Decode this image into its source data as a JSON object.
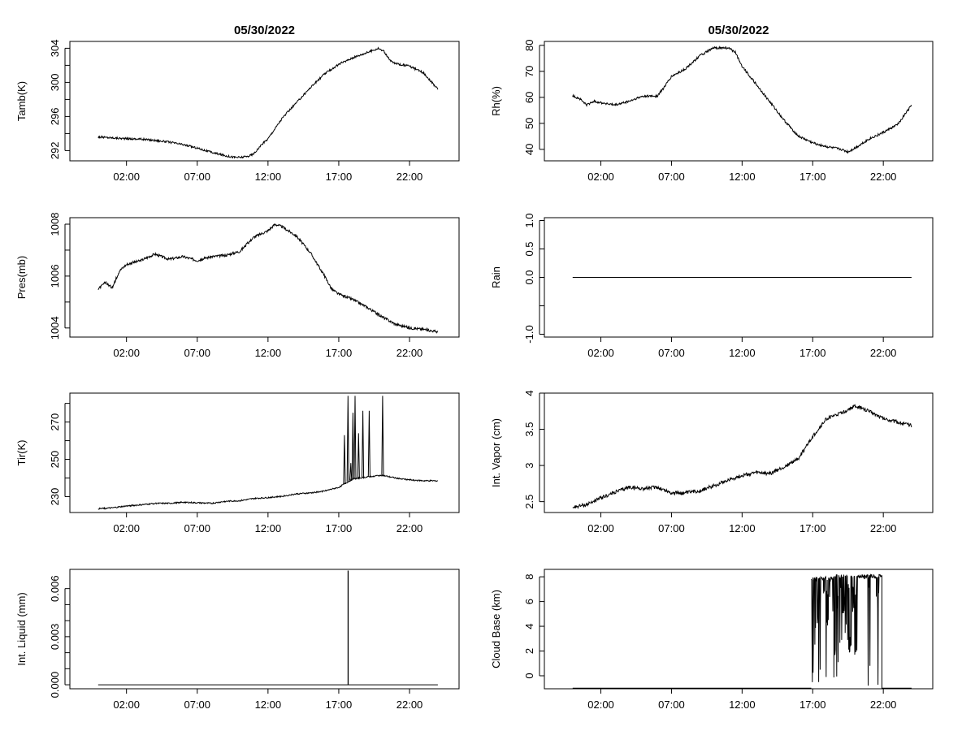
{
  "chart_data": [
    {
      "type": "line",
      "id": "tamb",
      "title": "05/30/2022",
      "ylabel": "Tamb(K)",
      "xlim": [
        -2,
        25.5
      ],
      "ylim": [
        290.8,
        304.8
      ],
      "yticks": [
        292,
        296,
        300,
        304
      ],
      "yminor": [
        290,
        294,
        298,
        302
      ],
      "xticks": [
        2,
        7,
        12,
        17,
        22
      ],
      "xtick_labels": [
        "02:00",
        "07:00",
        "12:00",
        "17:00",
        "22:00"
      ],
      "noise": 0.12,
      "points": [
        [
          0,
          293.6
        ],
        [
          1,
          293.5
        ],
        [
          2,
          293.4
        ],
        [
          3,
          293.35
        ],
        [
          4,
          293.2
        ],
        [
          5,
          293.0
        ],
        [
          6,
          292.7
        ],
        [
          7,
          292.3
        ],
        [
          8,
          291.8
        ],
        [
          9,
          291.4
        ],
        [
          9.5,
          291.25
        ],
        [
          10,
          291.2
        ],
        [
          10.5,
          291.3
        ],
        [
          11,
          291.6
        ],
        [
          11.5,
          292.6
        ],
        [
          12,
          293.4
        ],
        [
          12.5,
          294.6
        ],
        [
          13,
          295.8
        ],
        [
          14,
          297.6
        ],
        [
          15,
          299.4
        ],
        [
          16,
          301.0
        ],
        [
          17,
          302.1
        ],
        [
          18,
          302.9
        ],
        [
          19,
          303.5
        ],
        [
          19.8,
          304.0
        ],
        [
          20.2,
          303.6
        ],
        [
          20.6,
          302.6
        ],
        [
          21,
          302.2
        ],
        [
          22,
          301.9
        ],
        [
          23,
          301.1
        ],
        [
          24,
          299.2
        ]
      ]
    },
    {
      "type": "line",
      "id": "rh",
      "title": "05/30/2022",
      "ylabel": "Rh(%)",
      "xlim": [
        -2,
        25.5
      ],
      "ylim": [
        35.6,
        81.5
      ],
      "yticks": [
        40,
        50,
        60,
        70,
        80
      ],
      "yminor": [],
      "xticks": [
        2,
        7,
        12,
        17,
        22
      ],
      "xtick_labels": [
        "02:00",
        "07:00",
        "12:00",
        "17:00",
        "22:00"
      ],
      "noise": 0.45,
      "points": [
        [
          0,
          60.5
        ],
        [
          0.5,
          59.5
        ],
        [
          1,
          57.0
        ],
        [
          1.5,
          58.5
        ],
        [
          2,
          58.0
        ],
        [
          3,
          57.0
        ],
        [
          4,
          58.5
        ],
        [
          5,
          60.5
        ],
        [
          6,
          60.5
        ],
        [
          6.5,
          64.0
        ],
        [
          7,
          68.0
        ],
        [
          8,
          71.0
        ],
        [
          9,
          76.0
        ],
        [
          10,
          79.0
        ],
        [
          11,
          79.0
        ],
        [
          11.5,
          77.5
        ],
        [
          12,
          72.0
        ],
        [
          13,
          65.0
        ],
        [
          14,
          58.0
        ],
        [
          15,
          51.0
        ],
        [
          16,
          45.0
        ],
        [
          17,
          42.5
        ],
        [
          18,
          41.0
        ],
        [
          19,
          40.0
        ],
        [
          19.5,
          39.0
        ],
        [
          20,
          40.5
        ],
        [
          21,
          44.0
        ],
        [
          22,
          46.5
        ],
        [
          23,
          49.5
        ],
        [
          24,
          57.0
        ]
      ]
    },
    {
      "type": "line",
      "id": "pres",
      "ylabel": "Pres(mb)",
      "xlim": [
        -2,
        25.5
      ],
      "ylim": [
        1003.65,
        1008.25
      ],
      "yticks": [
        1004,
        1006,
        1008
      ],
      "yminor": [
        1005,
        1007
      ],
      "xticks": [
        2,
        7,
        12,
        17,
        22
      ],
      "xtick_labels": [
        "02:00",
        "07:00",
        "12:00",
        "17:00",
        "22:00"
      ],
      "noise": 0.05,
      "points": [
        [
          0,
          1005.5
        ],
        [
          0.5,
          1005.75
        ],
        [
          1,
          1005.55
        ],
        [
          1.5,
          1006.2
        ],
        [
          2,
          1006.45
        ],
        [
          3,
          1006.6
        ],
        [
          4,
          1006.85
        ],
        [
          5,
          1006.65
        ],
        [
          6,
          1006.75
        ],
        [
          7,
          1006.6
        ],
        [
          8,
          1006.75
        ],
        [
          9,
          1006.8
        ],
        [
          10,
          1006.95
        ],
        [
          11,
          1007.5
        ],
        [
          12,
          1007.75
        ],
        [
          12.5,
          1008.0
        ],
        [
          13,
          1007.9
        ],
        [
          14,
          1007.55
        ],
        [
          15,
          1006.9
        ],
        [
          16,
          1006.0
        ],
        [
          16.5,
          1005.5
        ],
        [
          17,
          1005.3
        ],
        [
          18,
          1005.1
        ],
        [
          19,
          1004.8
        ],
        [
          20,
          1004.45
        ],
        [
          21,
          1004.15
        ],
        [
          22,
          1004.0
        ],
        [
          23,
          1003.95
        ],
        [
          24,
          1003.85
        ]
      ]
    },
    {
      "type": "line",
      "id": "rain",
      "ylabel": "Rain",
      "xlim": [
        -2,
        25.5
      ],
      "ylim": [
        -1.05,
        1.05
      ],
      "yticks": [
        -1.0,
        -0.5,
        0.0,
        0.5,
        1.0
      ],
      "ytick_labels": [
        "-1.0",
        "",
        "0.0",
        "0.5",
        "1.0"
      ],
      "yminor": [],
      "xticks": [
        2,
        7,
        12,
        17,
        22
      ],
      "xtick_labels": [
        "02:00",
        "07:00",
        "12:00",
        "17:00",
        "22:00"
      ],
      "noise": 0,
      "points": [
        [
          0,
          0
        ],
        [
          24,
          0
        ]
      ]
    },
    {
      "type": "line",
      "id": "tir",
      "ylabel": "Tir(K)",
      "xlim": [
        -2,
        25.5
      ],
      "ylim": [
        221.5,
        285.5
      ],
      "yticks": [
        230,
        250,
        270
      ],
      "yminor": [
        240,
        260,
        280
      ],
      "xticks": [
        2,
        7,
        12,
        17,
        22
      ],
      "xtick_labels": [
        "02:00",
        "07:00",
        "12:00",
        "17:00",
        "22:00"
      ],
      "noise": 0.35,
      "points": [
        [
          0,
          223.5
        ],
        [
          1,
          224.0
        ],
        [
          2,
          225.0
        ],
        [
          3,
          225.6
        ],
        [
          4,
          226.4
        ],
        [
          5,
          226.4
        ],
        [
          6,
          227.0
        ],
        [
          7,
          226.7
        ],
        [
          8,
          226.4
        ],
        [
          9,
          227.5
        ],
        [
          10,
          227.8
        ],
        [
          11,
          229.0
        ],
        [
          12,
          229.5
        ],
        [
          13,
          230.2
        ],
        [
          14,
          231.5
        ],
        [
          15,
          232.0
        ],
        [
          16,
          233.0
        ],
        [
          17,
          235.0
        ],
        [
          18,
          239.5
        ],
        [
          19,
          240.5
        ],
        [
          20,
          241.5
        ],
        [
          21,
          240.0
        ],
        [
          22,
          239.0
        ],
        [
          23,
          238.5
        ],
        [
          24,
          238.5
        ]
      ],
      "spikes": [
        [
          17.4,
          263
        ],
        [
          17.65,
          284
        ],
        [
          17.85,
          248
        ],
        [
          18.0,
          275
        ],
        [
          18.15,
          284
        ],
        [
          18.4,
          264
        ],
        [
          18.7,
          276
        ],
        [
          19.15,
          276
        ],
        [
          20.1,
          284
        ]
      ]
    },
    {
      "type": "line",
      "id": "vapor",
      "ylabel": "Int. Vapor (cm)",
      "xlim": [
        -2,
        25.5
      ],
      "ylim": [
        2.35,
        4.0
      ],
      "yticks": [
        2.5,
        3.0,
        3.5,
        4.0
      ],
      "yminor": [],
      "xticks": [
        2,
        7,
        12,
        17,
        22
      ],
      "xtick_labels": [
        "02:00",
        "07:00",
        "12:00",
        "17:00",
        "22:00"
      ],
      "noise": 0.025,
      "points": [
        [
          0,
          2.42
        ],
        [
          1,
          2.46
        ],
        [
          2,
          2.55
        ],
        [
          3,
          2.63
        ],
        [
          4,
          2.7
        ],
        [
          5,
          2.68
        ],
        [
          6,
          2.7
        ],
        [
          7,
          2.62
        ],
        [
          8,
          2.62
        ],
        [
          9,
          2.65
        ],
        [
          10,
          2.72
        ],
        [
          11,
          2.8
        ],
        [
          12,
          2.86
        ],
        [
          13,
          2.9
        ],
        [
          14,
          2.89
        ],
        [
          15,
          2.98
        ],
        [
          16,
          3.1
        ],
        [
          17,
          3.4
        ],
        [
          18,
          3.65
        ],
        [
          19,
          3.72
        ],
        [
          20,
          3.82
        ],
        [
          21,
          3.75
        ],
        [
          22,
          3.65
        ],
        [
          23,
          3.6
        ],
        [
          24,
          3.55
        ]
      ]
    },
    {
      "type": "line",
      "id": "liquid",
      "ylabel": "Int. Liquid (mm)",
      "xlim": [
        -2,
        25.5
      ],
      "ylim": [
        -0.00025,
        0.0072
      ],
      "yticks": [
        0.0,
        0.003,
        0.006
      ],
      "ytick_labels": [
        "0.000",
        "0.003",
        "0.006"
      ],
      "yminor": [
        0.001,
        0.002,
        0.004,
        0.005
      ],
      "xticks": [
        2,
        7,
        12,
        17,
        22
      ],
      "xtick_labels": [
        "02:00",
        "07:00",
        "12:00",
        "17:00",
        "22:00"
      ],
      "noise": 0,
      "points": [
        [
          0,
          0
        ],
        [
          17.65,
          0
        ],
        [
          17.65,
          0.0071
        ],
        [
          17.67,
          0.0071
        ],
        [
          17.67,
          0
        ],
        [
          24,
          0
        ]
      ]
    },
    {
      "type": "line",
      "id": "cloud",
      "ylabel": "Cloud Base (km)",
      "xlim": [
        -2,
        25.5
      ],
      "ylim": [
        -1.05,
        8.6
      ],
      "yticks": [
        0,
        2,
        4,
        6,
        8
      ],
      "yminor": [],
      "xticks": [
        2,
        7,
        12,
        17,
        22
      ],
      "xtick_labels": [
        "02:00",
        "07:00",
        "12:00",
        "17:00",
        "22:00"
      ],
      "noise": 0,
      "points": [
        [
          0,
          -1
        ],
        [
          16.9,
          -1
        ]
      ],
      "segments": [
        [
          16.9,
          17.8,
          -1,
          8
        ],
        [
          17.8,
          18.5,
          -1,
          8
        ],
        [
          18.5,
          19.3,
          -1,
          8.2
        ],
        [
          19.3,
          20.2,
          1.5,
          8.2
        ],
        [
          20.2,
          20.9,
          7.8,
          8.2
        ],
        [
          20.9,
          21.1,
          -1,
          8.2
        ],
        [
          21.1,
          21.5,
          7.9,
          8.2
        ],
        [
          21.5,
          21.7,
          -1,
          8.2
        ],
        [
          21.7,
          21.9,
          8,
          8.2
        ],
        [
          21.9,
          24,
          -1,
          -1
        ]
      ]
    }
  ]
}
